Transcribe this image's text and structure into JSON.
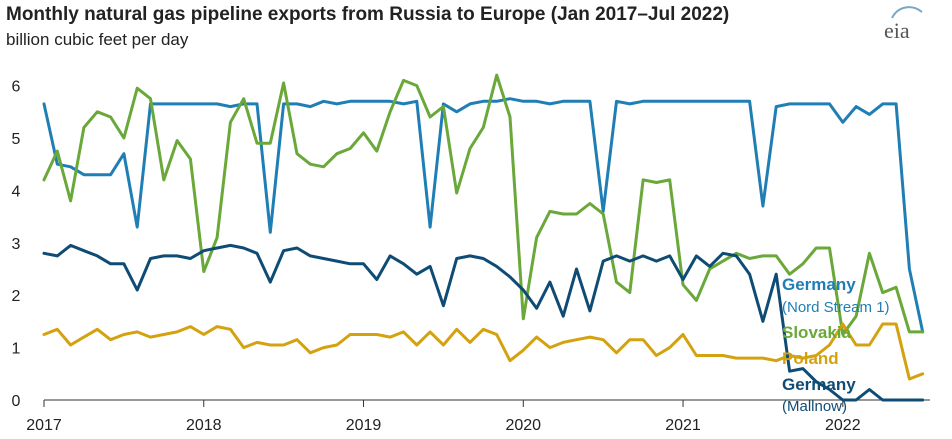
{
  "title": "Monthly natural gas pipeline exports from Russia to Europe (Jan 2017–Jul 2022)",
  "subtitle": "billion cubic feet per day",
  "logo_text": "eia",
  "colors": {
    "nord_stream": "#1f7fb5",
    "slovakia": "#6aa83a",
    "poland": "#d4a20e",
    "mallnow": "#0f4c75",
    "axis": "#333333",
    "grid": "#d9d9d9"
  },
  "chart_data": {
    "type": "line",
    "title": "Monthly natural gas pipeline exports from Russia to Europe (Jan 2017–Jul 2022)",
    "ylabel": "billion cubic feet per day",
    "xlabel": "",
    "ylim": [
      0,
      6.2
    ],
    "xlim": [
      "2017-01",
      "2022-07"
    ],
    "x_ticks": [
      "2017",
      "2018",
      "2019",
      "2020",
      "2021",
      "2022"
    ],
    "y_ticks": [
      0,
      1,
      2,
      3,
      4,
      5,
      6
    ],
    "grid": false,
    "legend_position": "right, at line ends",
    "x_start": "2017-01",
    "frequency": "monthly",
    "series": [
      {
        "name": "Germany",
        "label_line2": "(Nord Stream 1)",
        "color_key": "nord_stream",
        "values": [
          5.65,
          4.5,
          4.45,
          4.3,
          4.3,
          4.3,
          4.7,
          3.3,
          5.65,
          5.65,
          5.65,
          5.65,
          5.65,
          5.65,
          5.6,
          5.65,
          5.65,
          3.2,
          5.65,
          5.65,
          5.6,
          5.7,
          5.65,
          5.7,
          5.7,
          5.7,
          5.7,
          5.65,
          5.7,
          3.3,
          5.65,
          5.5,
          5.65,
          5.7,
          5.7,
          5.75,
          5.7,
          5.7,
          5.65,
          5.7,
          5.7,
          5.7,
          3.6,
          5.7,
          5.65,
          5.7,
          5.7,
          5.7,
          5.7,
          5.7,
          5.7,
          5.7,
          5.7,
          5.7,
          3.7,
          5.6,
          5.65,
          5.65,
          5.65,
          5.65,
          5.3,
          5.6,
          5.45,
          5.65,
          5.65,
          2.5,
          1.3
        ]
      },
      {
        "name": "Slovakia",
        "color_key": "slovakia",
        "values": [
          4.2,
          4.75,
          3.8,
          5.2,
          5.5,
          5.4,
          5.0,
          5.95,
          5.75,
          4.2,
          4.95,
          4.6,
          2.45,
          3.1,
          5.3,
          5.75,
          4.9,
          4.9,
          6.05,
          4.7,
          4.5,
          4.45,
          4.7,
          4.8,
          5.1,
          4.75,
          5.5,
          6.1,
          6.0,
          5.4,
          5.6,
          3.95,
          4.8,
          5.2,
          6.2,
          5.4,
          1.55,
          3.1,
          3.6,
          3.55,
          3.55,
          3.75,
          3.55,
          2.25,
          2.05,
          4.2,
          4.15,
          4.2,
          2.2,
          1.9,
          2.5,
          2.65,
          2.8,
          2.7,
          2.75,
          2.75,
          2.4,
          2.6,
          2.9,
          2.9,
          1.25,
          1.6,
          2.8,
          2.05,
          2.15,
          1.3,
          1.3
        ]
      },
      {
        "name": "Poland",
        "color_key": "poland",
        "values": [
          1.25,
          1.35,
          1.05,
          1.2,
          1.35,
          1.15,
          1.25,
          1.3,
          1.2,
          1.25,
          1.3,
          1.4,
          1.25,
          1.4,
          1.35,
          1.0,
          1.1,
          1.05,
          1.05,
          1.15,
          0.9,
          1.0,
          1.05,
          1.25,
          1.25,
          1.25,
          1.2,
          1.3,
          1.05,
          1.3,
          1.05,
          1.35,
          1.1,
          1.35,
          1.25,
          0.75,
          0.95,
          1.2,
          1.0,
          1.1,
          1.15,
          1.2,
          1.15,
          0.9,
          1.15,
          1.15,
          0.85,
          1.0,
          1.25,
          0.85,
          0.85,
          0.85,
          0.8,
          0.8,
          0.8,
          0.75,
          0.85,
          0.8,
          0.85,
          1.05,
          1.45,
          1.05,
          1.05,
          1.45,
          1.45,
          0.4,
          0.5
        ]
      },
      {
        "name": "Germany",
        "label_line2": "(Mallnow)",
        "color_key": "mallnow",
        "values": [
          2.8,
          2.75,
          2.95,
          2.85,
          2.75,
          2.6,
          2.6,
          2.1,
          2.7,
          2.75,
          2.75,
          2.7,
          2.85,
          2.9,
          2.95,
          2.9,
          2.8,
          2.25,
          2.85,
          2.9,
          2.75,
          2.7,
          2.65,
          2.6,
          2.6,
          2.3,
          2.75,
          2.6,
          2.4,
          2.55,
          1.8,
          2.7,
          2.75,
          2.7,
          2.55,
          2.35,
          2.1,
          1.75,
          2.25,
          1.6,
          2.5,
          1.7,
          2.65,
          2.75,
          2.65,
          2.75,
          2.65,
          2.75,
          2.3,
          2.75,
          2.55,
          2.8,
          2.75,
          2.4,
          1.5,
          2.4,
          0.55,
          0.6,
          0.35,
          0.2,
          0.0,
          0.0,
          0.2,
          0.0,
          0.0,
          0.0,
          0.0
        ]
      }
    ]
  }
}
